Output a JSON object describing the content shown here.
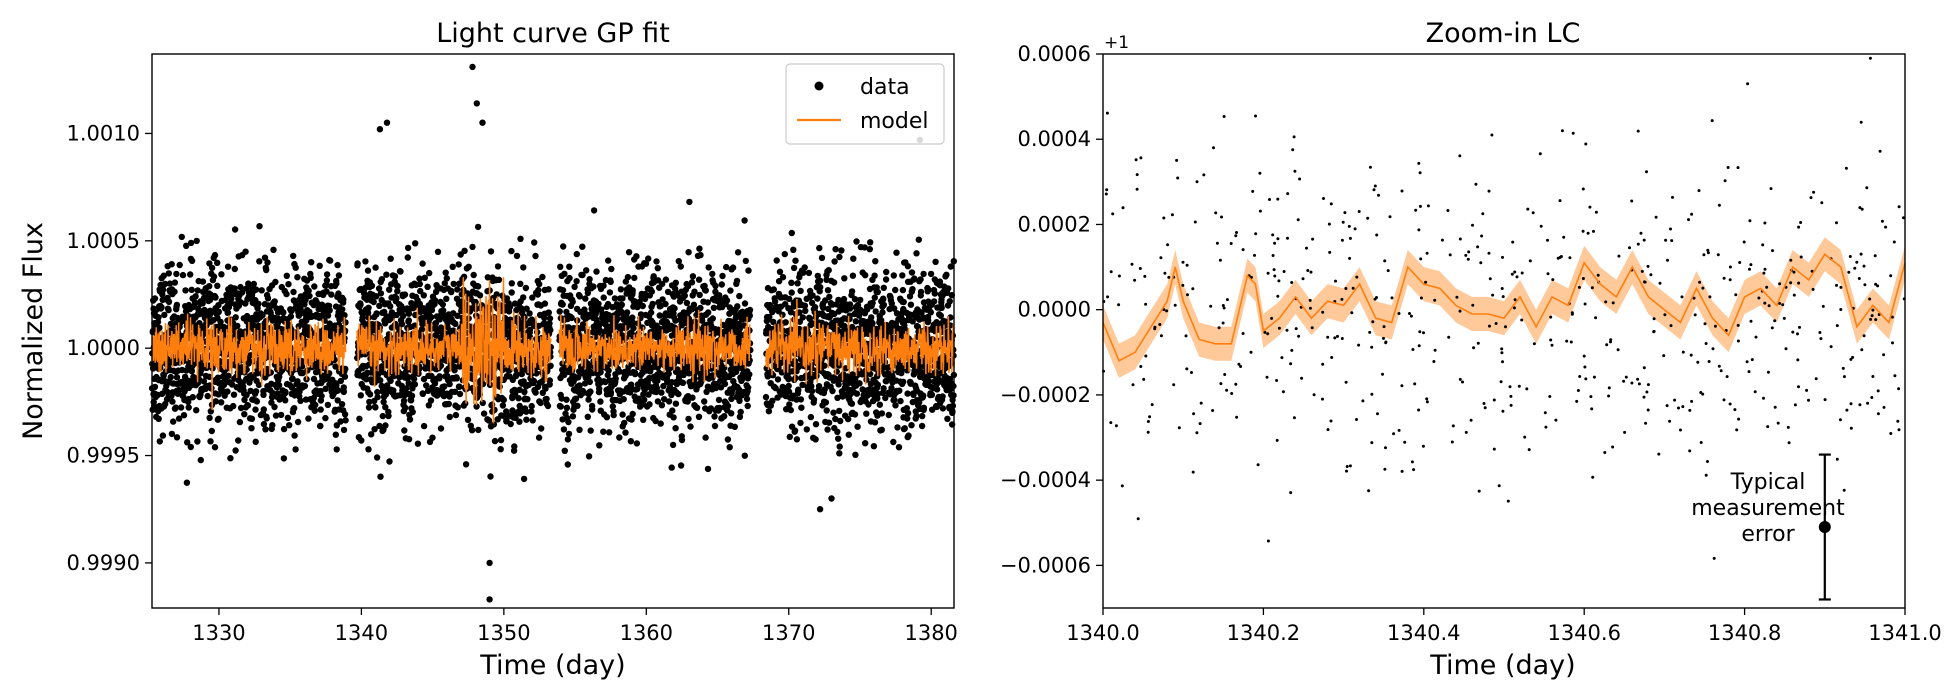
{
  "chart_data": [
    {
      "type": "scatter",
      "title": "Light curve GP fit",
      "xlabel": "Time (day)",
      "ylabel": "Normalized Flux",
      "xlim": [
        1325.3,
        1381.6
      ],
      "ylim": [
        0.99879,
        1.00137
      ],
      "xticks": [
        "1330",
        "1340",
        "1350",
        "1360",
        "1370",
        "1380"
      ],
      "xtick_values": [
        1330,
        1340,
        1350,
        1360,
        1370,
        1380
      ],
      "yticks": [
        "0.9990",
        "0.9995",
        "1.0000",
        "1.0005",
        "1.0010"
      ],
      "ytick_values": [
        0.999,
        0.9995,
        1.0,
        1.0005,
        1.001
      ],
      "grid": false,
      "legend": {
        "placement": "top-right",
        "entries": [
          "data",
          "model"
        ]
      },
      "segments": [
        [
          1325.3,
          1338.9
        ],
        [
          1339.7,
          1353.3
        ],
        [
          1353.9,
          1367.3
        ],
        [
          1368.4,
          1381.6
        ]
      ],
      "series": [
        {
          "name": "data",
          "kind": "points",
          "color": "#000000",
          "center": 1.0,
          "scatter_std": 0.00018,
          "outliers": [
            [
              1347.8,
              1.00131
            ],
            [
              1348.1,
              1.00114
            ],
            [
              1348.5,
              1.00105
            ],
            [
              1349.0,
              0.999
            ],
            [
              1349.0,
              0.99883
            ],
            [
              1341.8,
              1.00105
            ],
            [
              1341.3,
              1.00102
            ],
            [
              1379.2,
              1.00097
            ],
            [
              1372.2,
              0.99925
            ],
            [
              1373.0,
              0.9993
            ]
          ]
        },
        {
          "name": "model",
          "kind": "line",
          "color": "#ff7f0e",
          "center": 1.0,
          "std": 6e-05
        }
      ]
    },
    {
      "type": "line",
      "title": "Zoom-in LC",
      "xlabel": "Time (day)",
      "ylabel": "",
      "offset_text": "+1",
      "xlim": [
        1340.0,
        1341.0
      ],
      "ylim": [
        -0.0007,
        0.0006
      ],
      "xticks": [
        "1340.0",
        "1340.2",
        "1340.4",
        "1340.6",
        "1340.8",
        "1341.0"
      ],
      "xtick_values": [
        1340.0,
        1340.2,
        1340.4,
        1340.6,
        1340.8,
        1341.0
      ],
      "yticks": [
        "−0.0006",
        "−0.0004",
        "−0.0002",
        "0.0000",
        "0.0002",
        "0.0004",
        "0.0006"
      ],
      "ytick_values": [
        -0.0006,
        -0.0004,
        -0.0002,
        0.0,
        0.0002,
        0.0004,
        0.0006
      ],
      "grid": false,
      "series": [
        {
          "name": "model",
          "kind": "line",
          "color": "#ff7f0e",
          "x": [
            1340.0,
            1340.02,
            1340.04,
            1340.06,
            1340.08,
            1340.09,
            1340.1,
            1340.12,
            1340.14,
            1340.16,
            1340.18,
            1340.19,
            1340.2,
            1340.22,
            1340.24,
            1340.26,
            1340.28,
            1340.3,
            1340.32,
            1340.34,
            1340.36,
            1340.38,
            1340.4,
            1340.42,
            1340.44,
            1340.46,
            1340.48,
            1340.5,
            1340.52,
            1340.54,
            1340.56,
            1340.58,
            1340.6,
            1340.62,
            1340.64,
            1340.66,
            1340.68,
            1340.7,
            1340.72,
            1340.74,
            1340.76,
            1340.78,
            1340.8,
            1340.82,
            1340.84,
            1340.86,
            1340.88,
            1340.9,
            1340.92,
            1340.94,
            1340.96,
            1340.98,
            1341.0
          ],
          "y": [
            -3e-05,
            -0.00012,
            -0.0001,
            -4e-05,
            2e-05,
            0.0001,
            2e-05,
            -7e-05,
            -8e-05,
            -8e-05,
            8e-05,
            6e-05,
            -5e-05,
            -2e-05,
            3e-05,
            -2e-05,
            2e-05,
            1e-05,
            6e-05,
            -2e-05,
            -3e-05,
            0.0001,
            6e-05,
            5e-05,
            1e-05,
            -1e-05,
            -1e-05,
            -2e-05,
            3e-05,
            -4e-05,
            3e-05,
            1e-05,
            0.00011,
            6e-05,
            3e-05,
            0.0001,
            3e-05,
            0.0,
            -3e-05,
            5e-05,
            -2e-05,
            -6e-05,
            3e-05,
            5e-05,
            1e-05,
            0.0001,
            7e-05,
            0.00013,
            0.0001,
            -4e-05,
            1e-05,
            -3e-05,
            0.00011
          ]
        },
        {
          "name": "data",
          "kind": "points",
          "color": "#000000",
          "scatter_std": 0.00019
        }
      ],
      "band_halfwidth": 4e-05,
      "errorbar": {
        "x": 1340.9,
        "y": -0.00051,
        "yerr": 0.00017,
        "label": "Typical\nmeasurement\nerror"
      }
    }
  ]
}
